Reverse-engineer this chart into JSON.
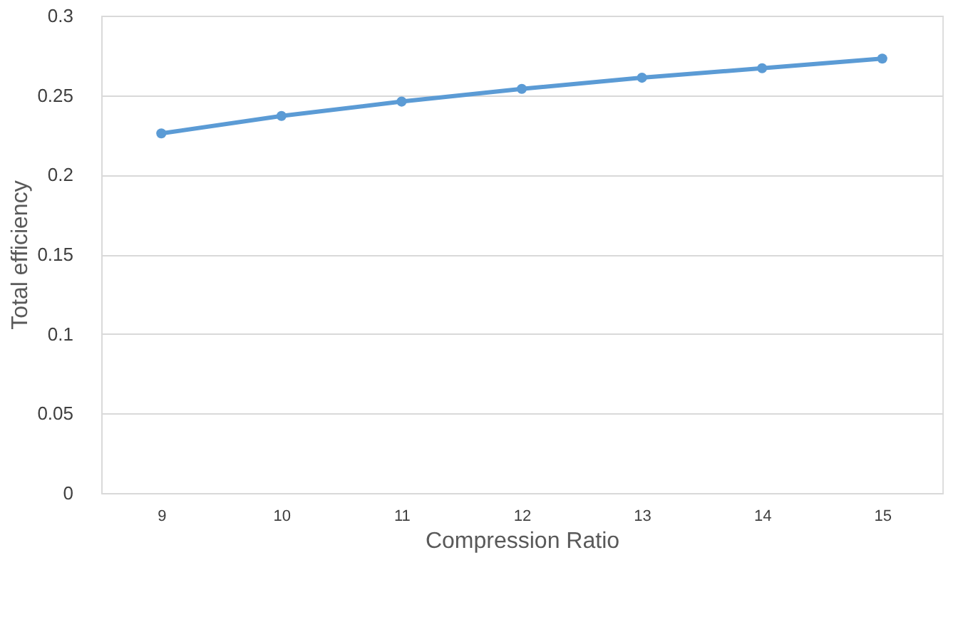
{
  "chart_data": {
    "type": "line",
    "xlabel": "Compression Ratio",
    "ylabel": "Total efficiency",
    "categories": [
      "9",
      "10",
      "11",
      "12",
      "13",
      "14",
      "15"
    ],
    "series": [
      {
        "color": "#5b9bd5",
        "values": [
          0.226,
          0.237,
          0.246,
          0.254,
          0.261,
          0.267,
          0.273
        ]
      }
    ],
    "ylim": [
      0,
      0.3
    ],
    "yticks": [
      0,
      0.05,
      0.1,
      0.15,
      0.2,
      0.25,
      0.3
    ],
    "grid": "y",
    "marker": "circle",
    "line_style": "solid"
  }
}
